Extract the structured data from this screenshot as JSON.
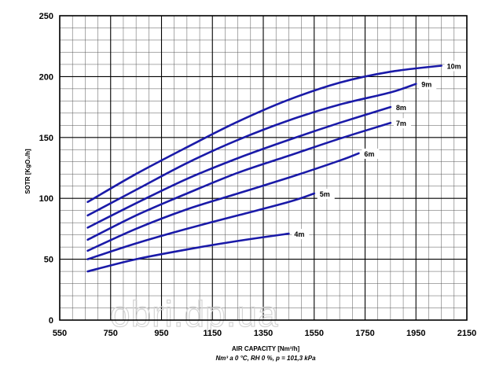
{
  "chart_data": {
    "type": "line",
    "xlabel": "AIR CAPACITY [Nm³/h]",
    "subtitle": "Nm³ a 0 °C, RH 0 %, p = 101,3 kPa",
    "ylabel": "SOTR [KgO₂/h]",
    "xlim": [
      550,
      2150
    ],
    "ylim": [
      0,
      250
    ],
    "x_ticks": [
      "550",
      "750",
      "950",
      "1150",
      "1350",
      "1550",
      "1750",
      "1950",
      "2150"
    ],
    "y_ticks": [
      "0",
      "50",
      "100",
      "150",
      "200",
      "250"
    ],
    "x_minor_step": 50,
    "y_minor_step": 10,
    "grid": true,
    "line_color": "#1a1aa8",
    "watermark": "obri.dp.ua",
    "series": [
      {
        "name": "4m",
        "x": [
          660,
          850,
          1050,
          1250,
          1450
        ],
        "y": [
          40,
          50,
          58,
          65,
          71
        ]
      },
      {
        "name": "5m",
        "x": [
          660,
          850,
          1050,
          1250,
          1450,
          1550
        ],
        "y": [
          50,
          63,
          75,
          86,
          97,
          104
        ]
      },
      {
        "name": "6m",
        "x": [
          660,
          850,
          1050,
          1250,
          1450,
          1650,
          1725
        ],
        "y": [
          57,
          75,
          91,
          104,
          117,
          131,
          137
        ]
      },
      {
        "name": "7m",
        "x": [
          660,
          850,
          1050,
          1250,
          1450,
          1650,
          1850
        ],
        "y": [
          66,
          86,
          104,
          121,
          135,
          149,
          162
        ]
      },
      {
        "name": "8m",
        "x": [
          660,
          850,
          1050,
          1250,
          1450,
          1650,
          1850
        ],
        "y": [
          76,
          96,
          116,
          133,
          148,
          162,
          175
        ]
      },
      {
        "name": "9m",
        "x": [
          660,
          850,
          1050,
          1250,
          1450,
          1650,
          1850,
          1950
        ],
        "y": [
          86,
          107,
          129,
          148,
          164,
          177,
          187,
          194
        ]
      },
      {
        "name": "10m",
        "x": [
          660,
          850,
          1050,
          1250,
          1450,
          1650,
          1850,
          2050
        ],
        "y": [
          97,
          120,
          142,
          163,
          181,
          195,
          204,
          209
        ]
      }
    ]
  }
}
